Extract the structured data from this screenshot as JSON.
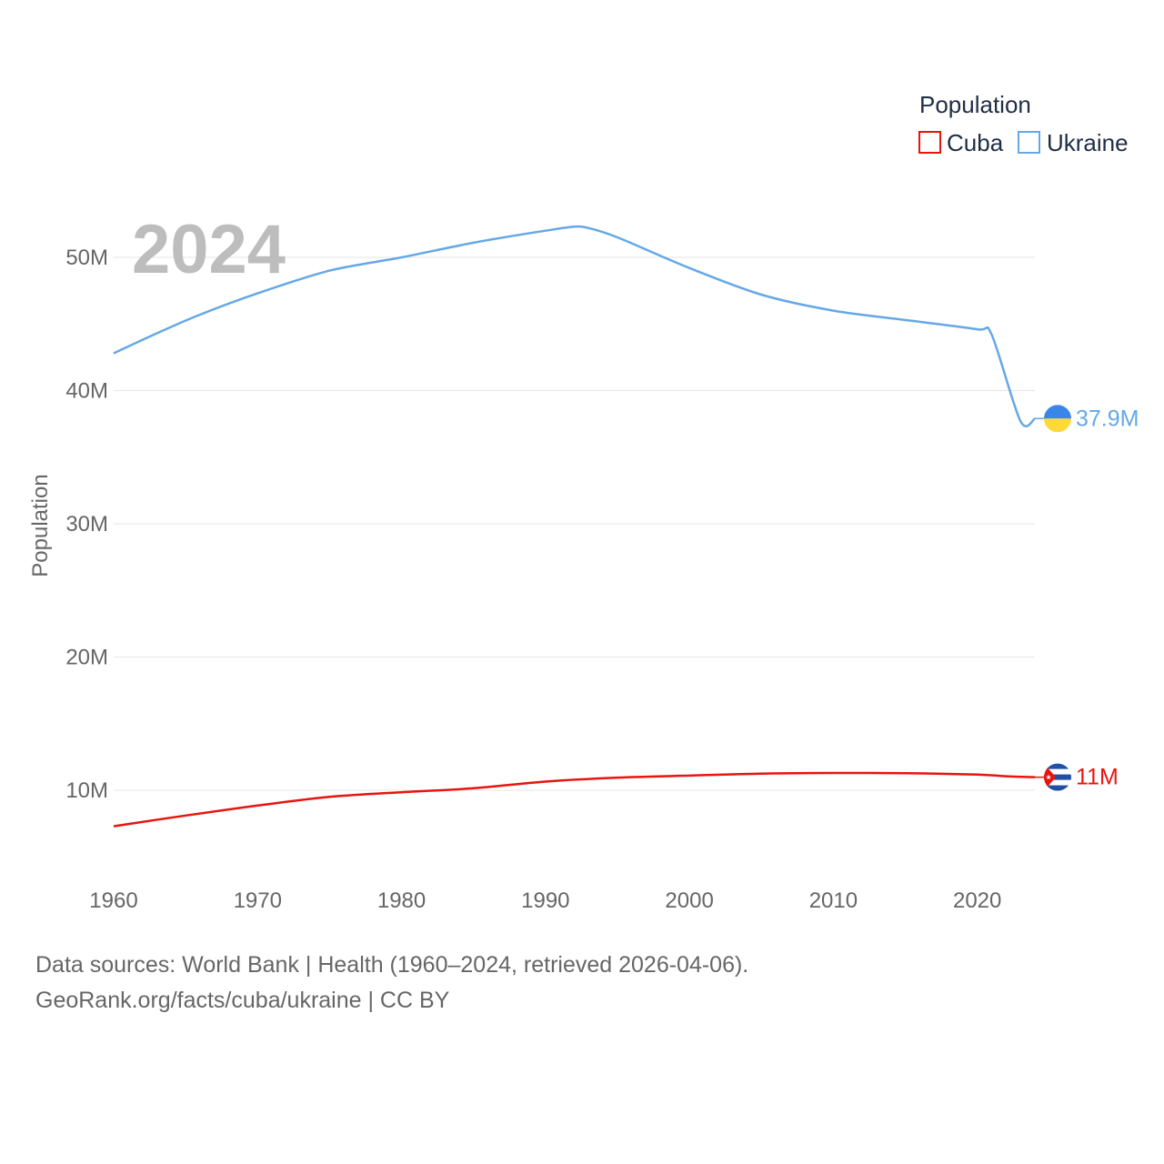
{
  "chart_data": {
    "type": "line",
    "ylabel": "Population",
    "year_label": "2024",
    "xlim": [
      1960,
      2024
    ],
    "ylim": [
      7000000,
      52500000
    ],
    "x_ticks": [
      {
        "value": 1960,
        "label": "1960"
      },
      {
        "value": 1970,
        "label": "1970"
      },
      {
        "value": 1980,
        "label": "1980"
      },
      {
        "value": 1990,
        "label": "1990"
      },
      {
        "value": 2000,
        "label": "2000"
      },
      {
        "value": 2010,
        "label": "2010"
      },
      {
        "value": 2020,
        "label": "2020"
      }
    ],
    "y_ticks": [
      {
        "value": 10000000,
        "label": "10M"
      },
      {
        "value": 20000000,
        "label": "20M"
      },
      {
        "value": 30000000,
        "label": "30M"
      },
      {
        "value": 40000000,
        "label": "40M"
      },
      {
        "value": 50000000,
        "label": "50M"
      }
    ],
    "grid": true,
    "legend": {
      "title": "Population",
      "position": "top-right",
      "items": [
        {
          "label": "Cuba",
          "color": "#e8140f"
        },
        {
          "label": "Ukraine",
          "color": "#65a8e6"
        }
      ]
    },
    "series": [
      {
        "name": "Cuba",
        "color": "#e8140f",
        "end_label": "11M",
        "flag": "cuba-flag",
        "points": [
          [
            1960,
            7300000
          ],
          [
            1965,
            8100000
          ],
          [
            1970,
            8850000
          ],
          [
            1975,
            9500000
          ],
          [
            1980,
            9850000
          ],
          [
            1985,
            10150000
          ],
          [
            1990,
            10650000
          ],
          [
            1995,
            10950000
          ],
          [
            2000,
            11100000
          ],
          [
            2005,
            11250000
          ],
          [
            2010,
            11300000
          ],
          [
            2015,
            11280000
          ],
          [
            2020,
            11180000
          ],
          [
            2022,
            11050000
          ],
          [
            2024,
            10980000
          ]
        ]
      },
      {
        "name": "Ukraine",
        "color": "#65a8e6",
        "end_label": "37.9M",
        "flag": "ukraine-flag",
        "points": [
          [
            1960,
            42800000
          ],
          [
            1963,
            44300000
          ],
          [
            1966,
            45700000
          ],
          [
            1970,
            47300000
          ],
          [
            1975,
            49000000
          ],
          [
            1980,
            50000000
          ],
          [
            1985,
            51100000
          ],
          [
            1990,
            52000000
          ],
          [
            1992,
            52300000
          ],
          [
            1993,
            52200000
          ],
          [
            1995,
            51500000
          ],
          [
            2000,
            49200000
          ],
          [
            2005,
            47200000
          ],
          [
            2010,
            46000000
          ],
          [
            2015,
            45300000
          ],
          [
            2020,
            44600000
          ],
          [
            2021,
            44200000
          ],
          [
            2023,
            37700000
          ],
          [
            2024,
            37900000
          ]
        ]
      }
    ]
  },
  "footer": {
    "source_line": "Data sources: World Bank | Health (1960–2024, retrieved 2026-04-06).",
    "credit_line": "GeoRank.org/facts/cuba/ukraine | CC BY"
  }
}
